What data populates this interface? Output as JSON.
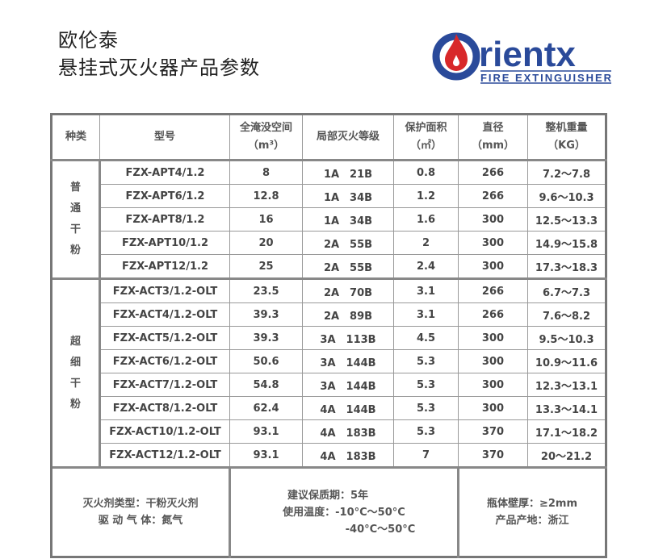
{
  "title": {
    "line1": "欧伦泰",
    "line2": "悬挂式灭火器产品参数"
  },
  "logo": {
    "brand": "rientx",
    "tagline": "FIRE EXTINGUISHER",
    "colors": {
      "blue": "#2a4a9a",
      "red": "#d8282a"
    }
  },
  "table": {
    "headers": [
      "种类",
      "型号",
      "全淹没空间\n（m³）",
      "局部灭火等级",
      "保护面积\n（㎡）",
      "直径\n（mm）",
      "整机重量\n（KG）"
    ],
    "groups": [
      {
        "label": "普\n通\n干\n粉",
        "rows": [
          [
            "FZX-APT4/1.2",
            "8",
            "1A　21B",
            "0.8",
            "266",
            "7.2～7.8"
          ],
          [
            "FZX-APT6/1.2",
            "12.8",
            "1A　34B",
            "1.2",
            "266",
            "9.6～10.3"
          ],
          [
            "FZX-APT8/1.2",
            "16",
            "1A　34B",
            "1.6",
            "300",
            "12.5～13.3"
          ],
          [
            "FZX-APT10/1.2",
            "20",
            "2A　55B",
            "2",
            "300",
            "14.9～15.8"
          ],
          [
            "FZX-APT12/1.2",
            "25",
            "2A　55B",
            "2.4",
            "300",
            "17.3～18.3"
          ]
        ]
      },
      {
        "label": "超\n细\n干\n粉",
        "rows": [
          [
            "FZX-ACT3/1.2-OLT",
            "23.5",
            "2A　70B",
            "3.1",
            "266",
            "6.7～7.3"
          ],
          [
            "FZX-ACT4/1.2-OLT",
            "39.3",
            "2A　89B",
            "3.1",
            "266",
            "7.6～8.2"
          ],
          [
            "FZX-ACT5/1.2-OLT",
            "39.3",
            "3A　113B",
            "4.5",
            "300",
            "9.5～10.3"
          ],
          [
            "FZX-ACT6/1.2-OLT",
            "50.6",
            "3A　144B",
            "5.3",
            "300",
            "10.9～11.6"
          ],
          [
            "FZX-ACT7/1.2-OLT",
            "54.8",
            "3A　144B",
            "5.3",
            "300",
            "12.3～13.1"
          ],
          [
            "FZX-ACT8/1.2-OLT",
            "62.4",
            "4A　144B",
            "5.3",
            "300",
            "13.3～14.1"
          ],
          [
            "FZX-ACT10/1.2-OLT",
            "93.1",
            "4A　183B",
            "5.3",
            "370",
            "17.1～18.2"
          ],
          [
            "FZX-ACT12/1.2-OLT",
            "93.1",
            "4A　183B",
            "7",
            "370",
            "20～21.2"
          ]
        ]
      }
    ]
  },
  "footer": {
    "left": [
      "灭火剂类型：干粉灭火剂",
      "驱 动 气 体：氮气"
    ],
    "middle": [
      "建议保质期：5年",
      "使用温度：-10°C～50°C",
      "-40°C～50°C"
    ],
    "right": [
      "瓶体壁厚：≥2mm",
      "产品产地：浙江"
    ]
  }
}
